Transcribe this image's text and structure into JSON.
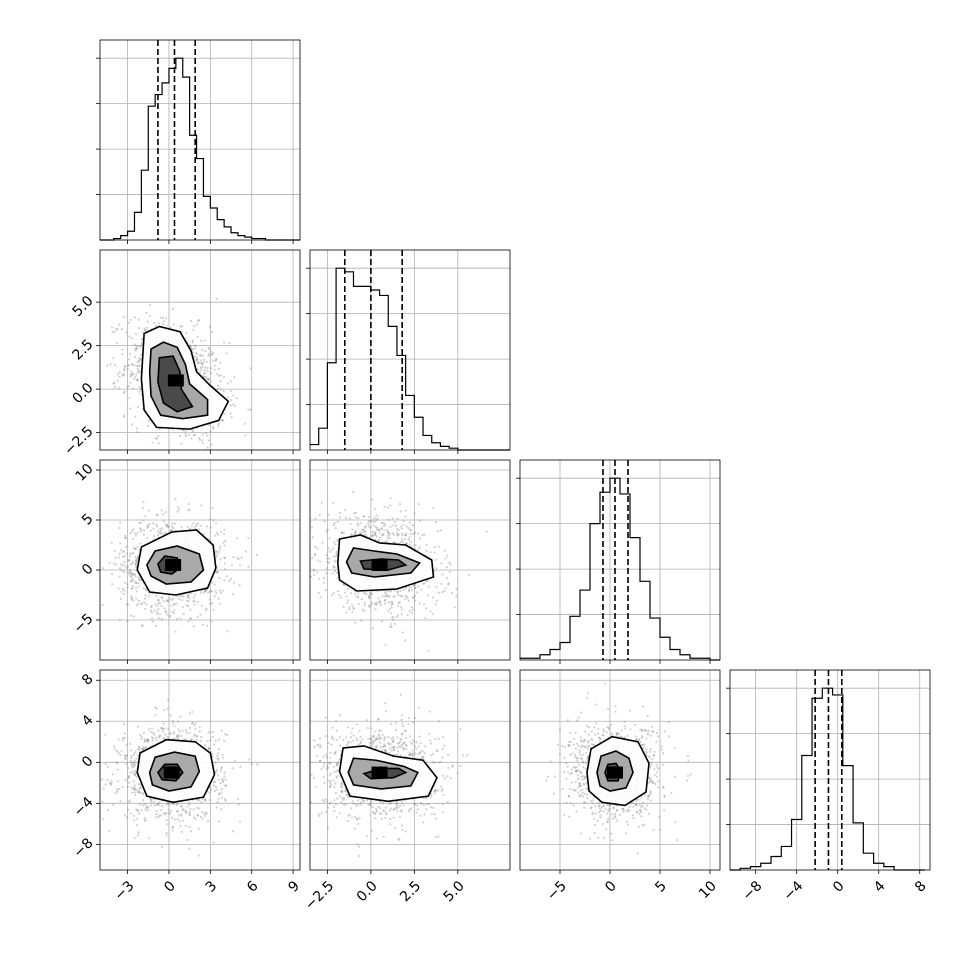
{
  "chart_data": {
    "type": "corner",
    "grid": true,
    "params": [
      {
        "range": [
          -5,
          9.5
        ],
        "ticks": [
          -3,
          0,
          3,
          6,
          9
        ],
        "tick_labels": [
          "−3",
          "0",
          "3",
          "6",
          "9"
        ],
        "quantiles": [
          -0.8,
          0.4,
          1.9
        ],
        "hist": {
          "edges": [
            -5,
            -4.5,
            -4,
            -3.5,
            -3,
            -2.5,
            -2,
            -1.5,
            -1,
            -0.5,
            0,
            0.5,
            1,
            1.5,
            2,
            2.5,
            3,
            3.5,
            4,
            4.5,
            5,
            5.5,
            6,
            6.5,
            7,
            7.5,
            8,
            8.5,
            9,
            9.5
          ],
          "counts": [
            0,
            0,
            1,
            3,
            6,
            19,
            48,
            92,
            100,
            108,
            118,
            125,
            112,
            72,
            56,
            30,
            22,
            14,
            9,
            5,
            3,
            2,
            1,
            1,
            0,
            0,
            0,
            0,
            0
          ]
        }
      },
      {
        "range": [
          -3.5,
          8
        ],
        "ticks": [
          -2.5,
          0,
          2.5,
          5
        ],
        "tick_labels": [
          "−2.5",
          "0.0",
          "2.5",
          "5.0"
        ],
        "quantiles": [
          -1.5,
          0.0,
          1.8
        ],
        "hist": {
          "edges": [
            -3.5,
            -3,
            -2.5,
            -2,
            -1.5,
            -1,
            -0.5,
            0,
            0.5,
            1,
            1.5,
            2,
            2.5,
            3,
            3.5,
            4,
            4.5,
            5,
            5.5,
            6,
            6.5,
            7,
            7.5,
            8
          ],
          "counts": [
            3,
            12,
            48,
            100,
            98,
            90,
            90,
            88,
            85,
            68,
            52,
            30,
            18,
            8,
            4,
            2,
            1,
            0,
            0,
            0,
            0,
            0,
            0
          ]
        }
      },
      {
        "range": [
          -9,
          11
        ],
        "ticks": [
          -5,
          0,
          5,
          10
        ],
        "tick_labels": [
          "−5",
          "0",
          "5",
          "10"
        ],
        "quantiles": [
          -0.7,
          0.5,
          1.8
        ],
        "hist": {
          "edges": [
            -9,
            -8,
            -7,
            -6,
            -5,
            -4,
            -3,
            -2,
            -1,
            0,
            1,
            2,
            3,
            4,
            5,
            6,
            7,
            8,
            9,
            10,
            11
          ],
          "counts": [
            1,
            1,
            3,
            6,
            10,
            25,
            40,
            78,
            96,
            104,
            95,
            70,
            45,
            24,
            13,
            6,
            3,
            1,
            1,
            0
          ]
        }
      },
      {
        "range": [
          -10.5,
          9
        ],
        "ticks": [
          -8,
          -4,
          0,
          4,
          8
        ],
        "tick_labels": [
          "−8",
          "−4",
          "0",
          "4",
          "8"
        ],
        "quantiles": [
          -2.2,
          -0.9,
          0.4
        ],
        "hist": {
          "edges": [
            -10.5,
            -9.5,
            -8.5,
            -7.5,
            -6.5,
            -5.5,
            -4.5,
            -3.5,
            -2.5,
            -1.5,
            -0.5,
            0.5,
            1.5,
            2.5,
            3.5,
            4.5,
            5.5,
            6.5,
            7.5,
            8.5
          ],
          "counts": [
            0,
            1,
            2,
            4,
            8,
            14,
            30,
            68,
            102,
            108,
            104,
            62,
            28,
            10,
            4,
            2,
            0,
            0,
            0
          ]
        }
      }
    ],
    "pairs": [
      {
        "row": 1,
        "col": 0,
        "center": [
          0.5,
          0.5
        ],
        "spread": [
          1.8,
          1.6
        ],
        "tilt": -0.3,
        "contours": [
          [
            [
              -1.8,
              3.2
            ],
            [
              -0.7,
              3.6
            ],
            [
              0.8,
              3.3
            ],
            [
              1.6,
              2.2
            ],
            [
              2.0,
              1.0
            ],
            [
              3.0,
              0.2
            ],
            [
              4.3,
              -0.7
            ],
            [
              3.6,
              -1.8
            ],
            [
              1.5,
              -2.3
            ],
            [
              -0.9,
              -2.2
            ],
            [
              -1.8,
              -1.2
            ],
            [
              -2.0,
              0.6
            ],
            [
              -1.8,
              3.2
            ]
          ],
          [
            [
              -1.3,
              2.3
            ],
            [
              -0.4,
              2.7
            ],
            [
              0.6,
              2.4
            ],
            [
              1.2,
              1.4
            ],
            [
              1.5,
              0.3
            ],
            [
              2.8,
              -0.6
            ],
            [
              2.8,
              -1.5
            ],
            [
              1.0,
              -1.7
            ],
            [
              -0.6,
              -1.5
            ],
            [
              -1.3,
              -0.4
            ],
            [
              -1.4,
              1.0
            ],
            [
              -1.3,
              2.3
            ]
          ],
          [
            [
              -0.7,
              1.8
            ],
            [
              0.3,
              1.9
            ],
            [
              0.8,
              1.0
            ],
            [
              0.9,
              0.0
            ],
            [
              1.7,
              -1.0
            ],
            [
              0.6,
              -1.3
            ],
            [
              -0.4,
              -0.8
            ],
            [
              -0.8,
              0.4
            ],
            [
              -0.7,
              1.8
            ]
          ]
        ]
      },
      {
        "row": 2,
        "col": 0,
        "center": [
          0.3,
          0.5
        ],
        "spread": [
          1.9,
          2.3
        ],
        "tilt": 0.0,
        "contours": [
          [
            [
              -2.3,
              0.0
            ],
            [
              -2.0,
              2.3
            ],
            [
              0.2,
              3.8
            ],
            [
              2.0,
              4.0
            ],
            [
              3.2,
              2.5
            ],
            [
              3.4,
              0.2
            ],
            [
              2.8,
              -1.8
            ],
            [
              0.5,
              -2.5
            ],
            [
              -1.4,
              -2.2
            ],
            [
              -2.3,
              0.0
            ]
          ],
          [
            [
              -1.6,
              0.5
            ],
            [
              -1.0,
              1.9
            ],
            [
              0.6,
              2.4
            ],
            [
              2.2,
              1.6
            ],
            [
              2.5,
              0.0
            ],
            [
              1.6,
              -1.2
            ],
            [
              -0.2,
              -1.4
            ],
            [
              -1.3,
              -0.6
            ],
            [
              -1.6,
              0.5
            ]
          ],
          [
            [
              -0.8,
              0.6
            ],
            [
              -0.3,
              1.4
            ],
            [
              0.6,
              1.2
            ],
            [
              0.8,
              0.2
            ],
            [
              0.2,
              -0.4
            ],
            [
              -0.6,
              -0.2
            ],
            [
              -0.8,
              0.6
            ]
          ]
        ]
      },
      {
        "row": 2,
        "col": 1,
        "center": [
          0.5,
          0.5
        ],
        "spread": [
          1.7,
          2.3
        ],
        "tilt": -0.2,
        "contours": [
          [
            [
              -1.9,
              0.7
            ],
            [
              -1.8,
              3.1
            ],
            [
              -0.6,
              3.5
            ],
            [
              0.5,
              2.7
            ],
            [
              2.0,
              2.5
            ],
            [
              3.5,
              1.0
            ],
            [
              3.6,
              -0.7
            ],
            [
              1.5,
              -1.9
            ],
            [
              -0.8,
              -2.1
            ],
            [
              -1.8,
              -1.0
            ],
            [
              -1.9,
              0.7
            ]
          ],
          [
            [
              -1.4,
              0.8
            ],
            [
              -1.0,
              2.2
            ],
            [
              0.2,
              1.9
            ],
            [
              1.5,
              1.6
            ],
            [
              2.8,
              0.7
            ],
            [
              2.3,
              -0.3
            ],
            [
              0.2,
              -0.7
            ],
            [
              -1.1,
              -0.3
            ],
            [
              -1.4,
              0.8
            ]
          ],
          [
            [
              -0.6,
              0.9
            ],
            [
              0.6,
              1.1
            ],
            [
              1.6,
              1.0
            ],
            [
              2.0,
              0.5
            ],
            [
              1.0,
              0.0
            ],
            [
              -0.4,
              0.1
            ],
            [
              -0.6,
              0.9
            ]
          ]
        ]
      },
      {
        "row": 3,
        "col": 0,
        "center": [
          0.2,
          -1.0
        ],
        "spread": [
          1.9,
          2.3
        ],
        "tilt": 0.0,
        "contours": [
          [
            [
              -2.3,
              -1.0
            ],
            [
              -2.1,
              0.9
            ],
            [
              -0.2,
              2.2
            ],
            [
              1.9,
              2.0
            ],
            [
              3.0,
              0.9
            ],
            [
              3.3,
              -1.2
            ],
            [
              2.5,
              -3.4
            ],
            [
              0.3,
              -3.9
            ],
            [
              -1.6,
              -3.3
            ],
            [
              -2.3,
              -1.0
            ]
          ],
          [
            [
              -1.4,
              -1.0
            ],
            [
              -1.0,
              0.5
            ],
            [
              0.4,
              1.0
            ],
            [
              1.9,
              0.6
            ],
            [
              2.2,
              -0.9
            ],
            [
              1.6,
              -2.4
            ],
            [
              0.0,
              -2.8
            ],
            [
              -1.2,
              -2.2
            ],
            [
              -1.4,
              -1.0
            ]
          ],
          [
            [
              -0.8,
              -1.0
            ],
            [
              -0.3,
              -0.2
            ],
            [
              0.6,
              -0.2
            ],
            [
              1.0,
              -1.0
            ],
            [
              0.5,
              -1.8
            ],
            [
              -0.5,
              -1.7
            ],
            [
              -0.8,
              -1.0
            ]
          ]
        ]
      },
      {
        "row": 3,
        "col": 1,
        "center": [
          0.5,
          -1.0
        ],
        "spread": [
          1.7,
          2.3
        ],
        "tilt": 0.0,
        "contours": [
          [
            [
              -1.8,
              -0.9
            ],
            [
              -1.6,
              1.4
            ],
            [
              -0.4,
              1.6
            ],
            [
              1.3,
              0.6
            ],
            [
              3.0,
              0.2
            ],
            [
              3.8,
              -1.5
            ],
            [
              3.3,
              -3.3
            ],
            [
              1.0,
              -3.8
            ],
            [
              -1.2,
              -3.3
            ],
            [
              -1.8,
              -0.9
            ]
          ],
          [
            [
              -1.3,
              -1.0
            ],
            [
              -1.0,
              0.4
            ],
            [
              0.3,
              0.2
            ],
            [
              1.9,
              -0.4
            ],
            [
              2.7,
              -1.0
            ],
            [
              2.3,
              -2.3
            ],
            [
              0.6,
              -2.6
            ],
            [
              -1.0,
              -2.2
            ],
            [
              -1.3,
              -1.0
            ]
          ],
          [
            [
              -0.4,
              -1.1
            ],
            [
              0.6,
              -0.6
            ],
            [
              1.6,
              -0.6
            ],
            [
              2.0,
              -1.0
            ],
            [
              1.3,
              -1.5
            ],
            [
              0.0,
              -1.6
            ],
            [
              -0.4,
              -1.1
            ]
          ]
        ]
      },
      {
        "row": 3,
        "col": 2,
        "center": [
          0.5,
          -1.0
        ],
        "spread": [
          2.3,
          2.3
        ],
        "tilt": 0.0,
        "contours": [
          [
            [
              -2.3,
              -1.0
            ],
            [
              -1.9,
              1.3
            ],
            [
              0.2,
              2.5
            ],
            [
              2.8,
              2.0
            ],
            [
              3.9,
              -0.1
            ],
            [
              3.6,
              -2.9
            ],
            [
              1.5,
              -4.2
            ],
            [
              -0.8,
              -3.9
            ],
            [
              -2.1,
              -2.8
            ],
            [
              -2.3,
              -1.0
            ]
          ],
          [
            [
              -1.3,
              -1.0
            ],
            [
              -0.9,
              0.6
            ],
            [
              0.6,
              1.1
            ],
            [
              1.9,
              0.4
            ],
            [
              2.3,
              -1.0
            ],
            [
              1.6,
              -2.5
            ],
            [
              0.0,
              -2.8
            ],
            [
              -1.0,
              -2.3
            ],
            [
              -1.3,
              -1.0
            ]
          ],
          [
            [
              -0.5,
              -1.0
            ],
            [
              -0.2,
              -0.2
            ],
            [
              0.6,
              -0.1
            ],
            [
              1.1,
              -0.9
            ],
            [
              0.8,
              -1.8
            ],
            [
              -0.2,
              -1.8
            ],
            [
              -0.5,
              -1.0
            ]
          ]
        ]
      }
    ]
  }
}
